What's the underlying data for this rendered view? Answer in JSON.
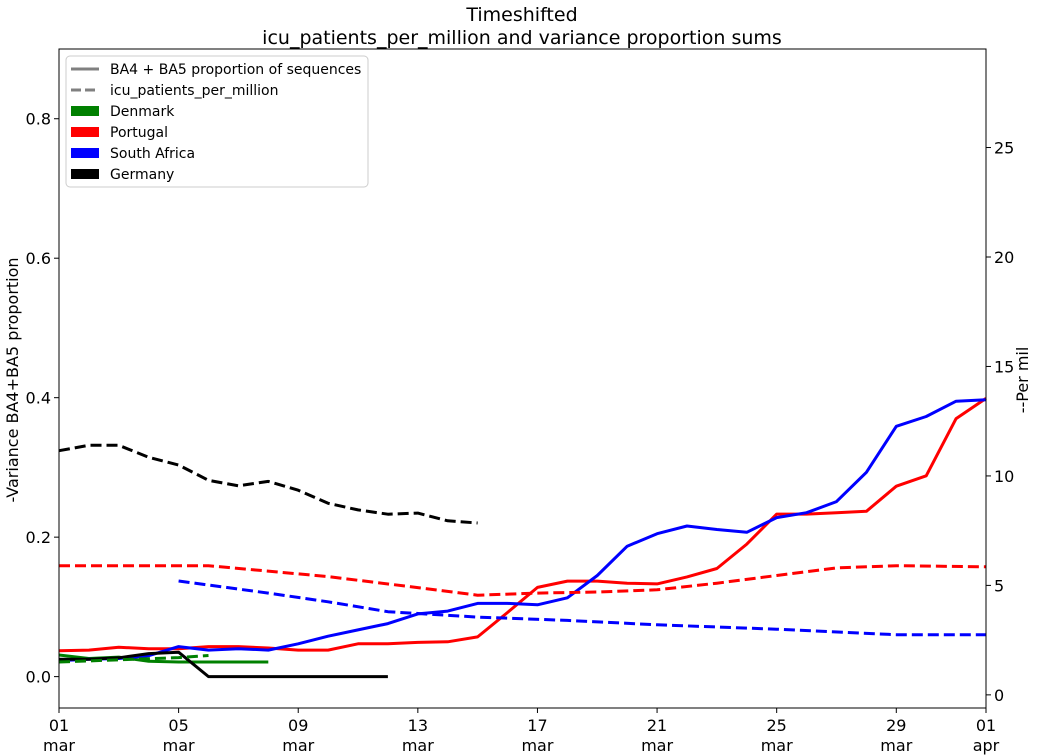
{
  "chart_data": {
    "type": "line",
    "title_lines": [
      "Timeshifted",
      "icu_patients_per_million and variance proportion sums"
    ],
    "left_ylabel": "-Variance BA4+BA5 proportion",
    "right_ylabel": "--Per mil",
    "left_ylim": [
      -0.045,
      0.9
    ],
    "right_ylim": [
      -0.6,
      29.5
    ],
    "x_range": [
      0,
      31
    ],
    "x_ticks": [
      {
        "x": 0,
        "top": "01",
        "bottom": "mar"
      },
      {
        "x": 4,
        "top": "05",
        "bottom": "mar"
      },
      {
        "x": 8,
        "top": "09",
        "bottom": "mar"
      },
      {
        "x": 12,
        "top": "13",
        "bottom": "mar"
      },
      {
        "x": 16,
        "top": "17",
        "bottom": "mar"
      },
      {
        "x": 20,
        "top": "21",
        "bottom": "mar"
      },
      {
        "x": 24,
        "top": "25",
        "bottom": "mar"
      },
      {
        "x": 28,
        "top": "29",
        "bottom": "mar"
      },
      {
        "x": 31,
        "top": "01",
        "bottom": "apr"
      }
    ],
    "left_yticks": [
      0.0,
      0.2,
      0.4,
      0.6,
      0.8
    ],
    "left_ytick_labels": [
      "0.0",
      "0.2",
      "0.4",
      "0.6",
      "0.8"
    ],
    "right_yticks": [
      0,
      5,
      10,
      15,
      20,
      25
    ],
    "right_ytick_labels": [
      "0",
      "5",
      "10",
      "15",
      "20",
      "25"
    ],
    "legend": {
      "placement": "top-left",
      "entries": [
        {
          "label": "BA4 + BA5 proportion of sequences",
          "kind": "solid",
          "color": "#808080"
        },
        {
          "label": "icu_patients_per_million",
          "kind": "dashed",
          "color": "#808080"
        },
        {
          "label": "Denmark",
          "kind": "patch",
          "color": "#008000"
        },
        {
          "label": "Portugal",
          "kind": "patch",
          "color": "#ff0000"
        },
        {
          "label": "South Africa",
          "kind": "patch",
          "color": "#0000ff"
        },
        {
          "label": "Germany",
          "kind": "patch",
          "color": "#000000"
        }
      ]
    },
    "series": [
      {
        "country": "Denmark",
        "metric": "proportion",
        "axis": "left",
        "color": "#008000",
        "dashed": false,
        "x": [
          0,
          1,
          2,
          3,
          4,
          5,
          6,
          7
        ],
        "y": [
          0.031,
          0.026,
          0.028,
          0.022,
          0.021,
          0.021,
          0.021,
          0.021
        ]
      },
      {
        "country": "Portugal",
        "metric": "proportion",
        "axis": "left",
        "color": "#ff0000",
        "dashed": false,
        "x": [
          0,
          1,
          2,
          3,
          4,
          5,
          6,
          7,
          8,
          9,
          10,
          11,
          12,
          13,
          14,
          15,
          16,
          17,
          18,
          19,
          20,
          21,
          22,
          23,
          24,
          25,
          26,
          27,
          28,
          29,
          30,
          31
        ],
        "y": [
          0.037,
          0.038,
          0.042,
          0.04,
          0.04,
          0.043,
          0.043,
          0.041,
          0.038,
          0.038,
          0.047,
          0.047,
          0.049,
          0.05,
          0.057,
          0.092,
          0.128,
          0.137,
          0.137,
          0.134,
          0.133,
          0.143,
          0.155,
          0.19,
          0.233,
          0.233,
          0.235,
          0.237,
          0.273,
          0.288,
          0.37,
          0.399
        ]
      },
      {
        "country": "South Africa",
        "metric": "proportion",
        "axis": "left",
        "color": "#0000ff",
        "dashed": false,
        "x": [
          0,
          1,
          2,
          3,
          4,
          5,
          6,
          7,
          8,
          9,
          10,
          11,
          12,
          13,
          14,
          15,
          16,
          17,
          18,
          19,
          20,
          21,
          22,
          23,
          24,
          25,
          26,
          27,
          28,
          29,
          30,
          31
        ],
        "y": [
          0.023,
          0.025,
          0.026,
          0.03,
          0.043,
          0.038,
          0.04,
          0.038,
          0.047,
          0.058,
          0.067,
          0.076,
          0.09,
          0.094,
          0.105,
          0.105,
          0.103,
          0.113,
          0.145,
          0.187,
          0.205,
          0.216,
          0.211,
          0.207,
          0.228,
          0.235,
          0.251,
          0.293,
          0.359,
          0.373,
          0.395,
          0.397
        ]
      },
      {
        "country": "Germany",
        "metric": "proportion",
        "axis": "left",
        "color": "#000000",
        "dashed": false,
        "x": [
          0,
          1,
          2,
          3,
          4,
          5,
          6,
          7,
          8,
          9,
          10,
          11
        ],
        "y": [
          0.025,
          0.025,
          0.027,
          0.033,
          0.035,
          0.0,
          0.0,
          0.0,
          0.0,
          0.0,
          0.0,
          0.0
        ]
      },
      {
        "country": "Denmark",
        "metric": "icu_patients_per_million",
        "axis": "right",
        "color": "#008000",
        "dashed": true,
        "x": [
          0,
          1,
          2,
          3,
          4,
          5
        ],
        "y": [
          1.5,
          1.55,
          1.6,
          1.65,
          1.7,
          1.8
        ]
      },
      {
        "country": "Portugal",
        "metric": "icu_patients_per_million",
        "axis": "right",
        "color": "#ff0000",
        "dashed": true,
        "x": [
          0,
          5,
          9,
          12,
          14,
          16,
          18,
          20,
          22,
          24,
          26,
          28,
          31
        ],
        "y": [
          5.9,
          5.9,
          5.4,
          4.9,
          4.55,
          4.65,
          4.7,
          4.8,
          5.1,
          5.45,
          5.8,
          5.9,
          5.85
        ]
      },
      {
        "country": "South Africa",
        "metric": "icu_patients_per_million",
        "axis": "right",
        "color": "#0000ff",
        "dashed": true,
        "x": [
          4,
          7,
          9,
          11,
          14,
          17,
          20,
          24,
          28,
          31
        ],
        "y": [
          5.2,
          4.65,
          4.25,
          3.8,
          3.55,
          3.4,
          3.2,
          3.0,
          2.75,
          2.75
        ]
      },
      {
        "country": "Germany",
        "metric": "icu_patients_per_million",
        "axis": "right",
        "color": "#000000",
        "dashed": true,
        "x": [
          0,
          1,
          2,
          3,
          4,
          5,
          6,
          7,
          8,
          9,
          10,
          11,
          12,
          13,
          14
        ],
        "y": [
          11.15,
          11.4,
          11.4,
          10.85,
          10.5,
          9.8,
          9.55,
          9.75,
          9.35,
          8.75,
          8.45,
          8.25,
          8.3,
          7.95,
          7.85
        ]
      }
    ]
  }
}
